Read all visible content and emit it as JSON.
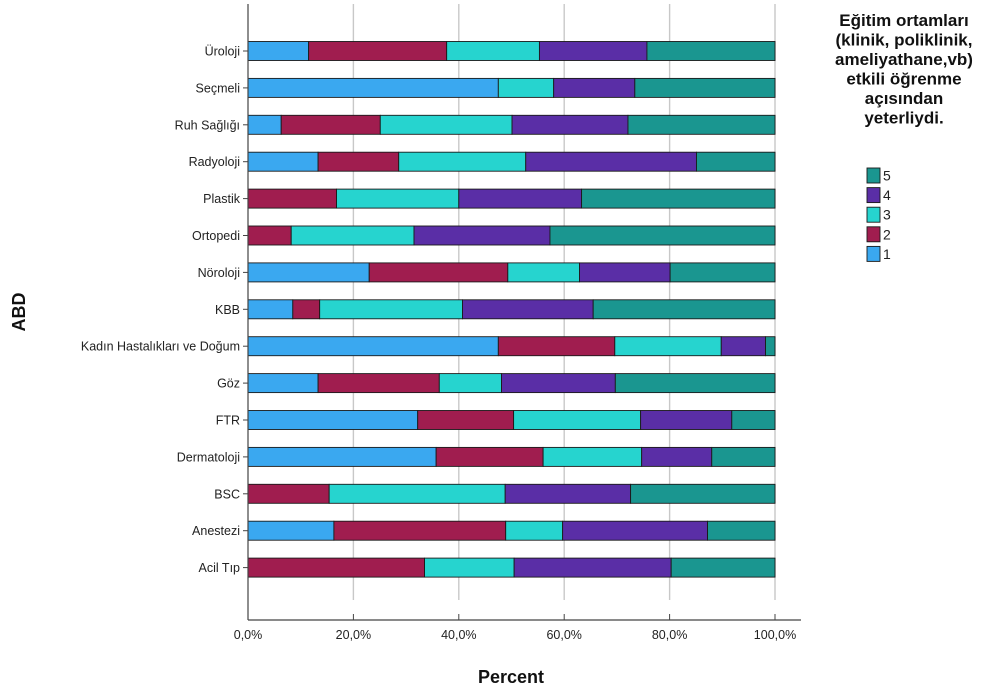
{
  "chart_data": {
    "type": "bar",
    "orientation": "horizontal",
    "stacked": true,
    "categories": [
      "Üroloji",
      "Seçmeli",
      "Ruh Sağlığı",
      "Radyoloji",
      "Plastik",
      "Ortopedi",
      "Nöroloji",
      "KBB",
      "Kadın Hastalıkları ve Doğum",
      "Göz",
      "FTR",
      "Dermatoloji",
      "BSC",
      "Anestezi",
      "Acil Tıp"
    ],
    "series": [
      {
        "name": "1",
        "color": "#3aa8f0",
        "values": [
          11.5,
          47.5,
          6.3,
          13.3,
          0,
          0,
          23.0,
          8.5,
          47.5,
          13.3,
          32.2,
          35.7,
          0,
          16.3,
          0
        ]
      },
      {
        "name": "2",
        "color": "#a01d4f",
        "values": [
          26.2,
          0,
          18.8,
          15.3,
          16.8,
          8.2,
          26.3,
          5.1,
          22.1,
          23.0,
          18.2,
          20.3,
          15.4,
          32.6,
          33.5
        ]
      },
      {
        "name": "3",
        "color": "#26d4cf",
        "values": [
          17.6,
          10.5,
          25.0,
          24.1,
          23.2,
          23.3,
          13.6,
          27.1,
          20.2,
          11.8,
          24.1,
          18.7,
          33.4,
          10.8,
          17.0
        ]
      },
      {
        "name": "4",
        "color": "#5a2ea6",
        "values": [
          20.4,
          15.4,
          22.0,
          32.4,
          23.3,
          25.8,
          17.2,
          24.8,
          8.4,
          21.6,
          17.3,
          13.3,
          23.8,
          27.5,
          29.8
        ]
      },
      {
        "name": "5",
        "color": "#1a9690",
        "values": [
          24.3,
          26.6,
          27.9,
          14.9,
          36.7,
          42.7,
          19.9,
          34.5,
          1.8,
          30.3,
          8.2,
          12.0,
          27.4,
          12.8,
          19.7
        ]
      }
    ],
    "xlabel": "Percent",
    "ylabel": "ABD",
    "xlim": [
      0,
      100
    ],
    "xticks": [
      "0,0%",
      "20,0%",
      "40,0%",
      "60,0%",
      "80,0%",
      "100,0%"
    ],
    "grid": "vertical",
    "legend": {
      "title_lines": [
        "Eğitim ortamları",
        "(klinik, poliklinik,",
        "ameliyathane,vb)",
        "etkili öğrenme",
        "açısından",
        "yeterliydi."
      ],
      "order": [
        "5",
        "4",
        "3",
        "2",
        "1"
      ],
      "placement": "right"
    }
  }
}
